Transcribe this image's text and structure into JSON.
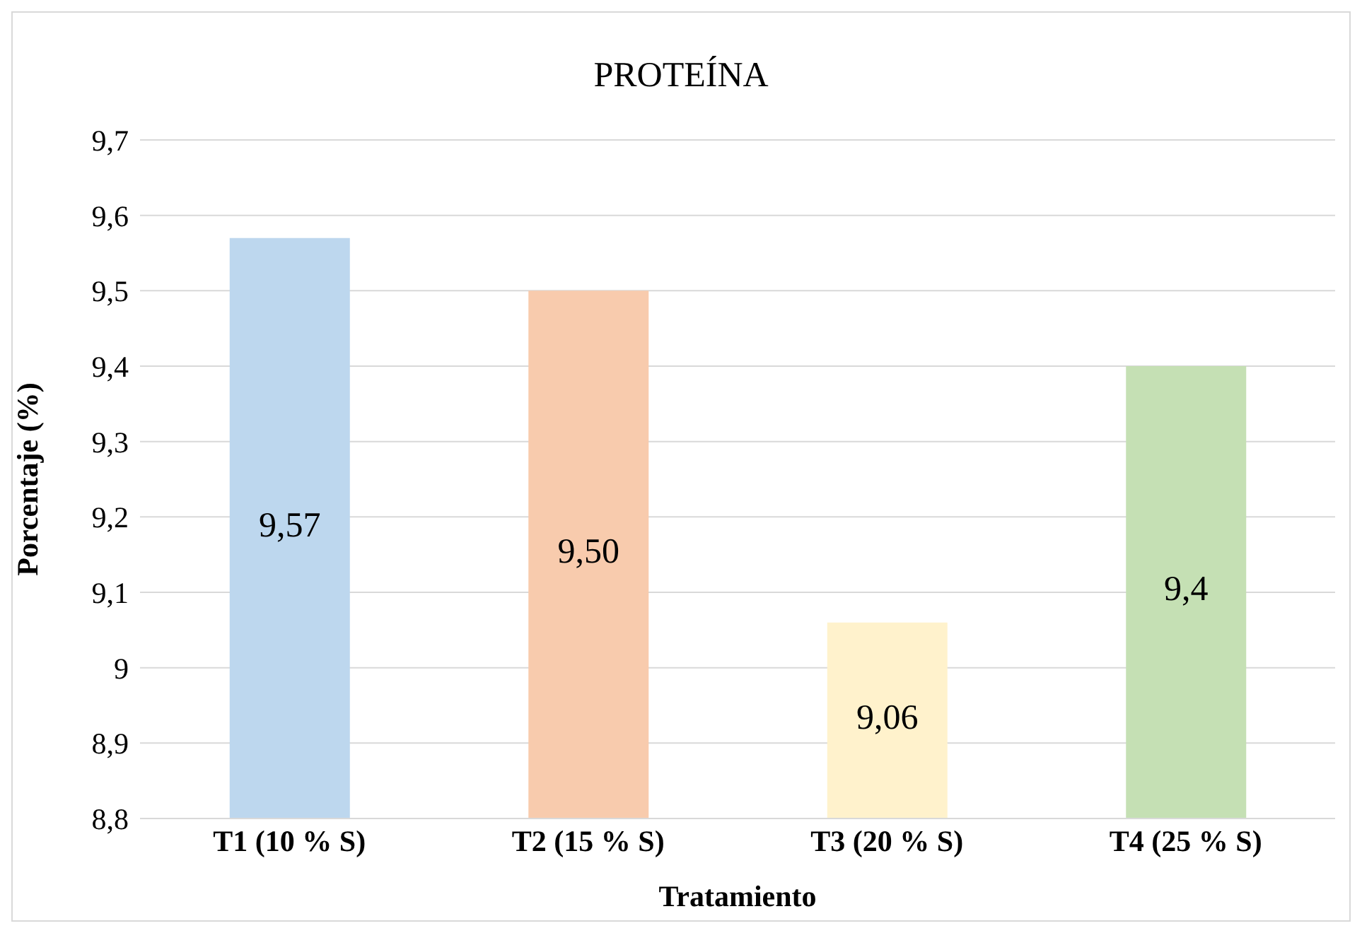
{
  "chart_data": {
    "type": "bar",
    "title": "PROTEÍNA",
    "xlabel": "Tratamiento",
    "ylabel": "Porcentaje (%)",
    "categories": [
      "T1 (10 % S)",
      "T2 (15 % S)",
      "T3 (20 % S)",
      "T4 (25 % S)"
    ],
    "values": [
      9.57,
      9.5,
      9.06,
      9.4
    ],
    "colors": [
      "#bdd7ee",
      "#f8cbad",
      "#fff2cc",
      "#c5e0b4"
    ],
    "value_labels": [
      "9,57",
      "9,50",
      "9,06",
      "9,4"
    ],
    "ylim": [
      8.8,
      9.7
    ],
    "yticks": [
      {
        "value": 8.8,
        "label": "8,8"
      },
      {
        "value": 8.9,
        "label": "8,9"
      },
      9,
      {
        "value": 9.1,
        "label": "9,1"
      },
      {
        "value": 9.2,
        "label": "9,2"
      },
      {
        "value": 9.3,
        "label": "9,3"
      },
      {
        "value": 9.4,
        "label": "9,4"
      },
      {
        "value": 9.5,
        "label": "9,5"
      },
      {
        "value": 9.6,
        "label": "9,6"
      },
      {
        "value": 9.7,
        "label": "9,7"
      }
    ],
    "grid": "y",
    "legend": false
  }
}
